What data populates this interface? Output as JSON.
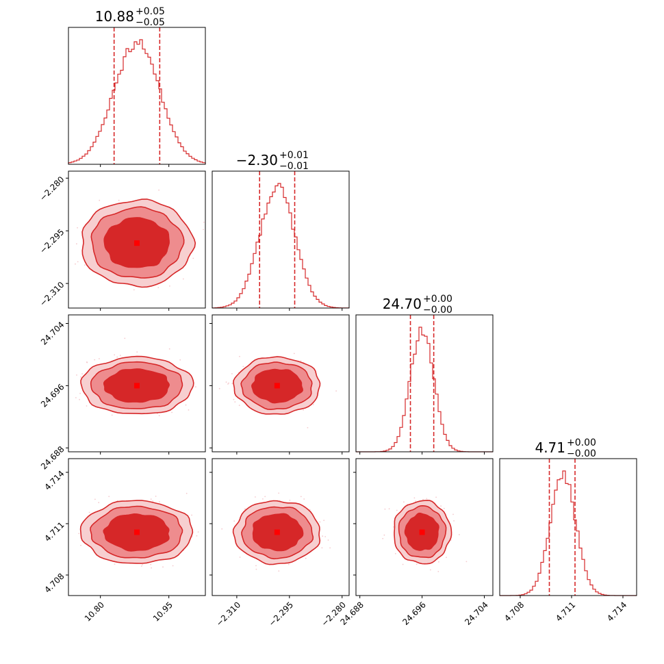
{
  "chart_data": {
    "type": "corner",
    "colors": {
      "line": "#d62728",
      "fill_inner": "#d62728",
      "fill_middle": "#ee8c8e",
      "fill_outer": "#f7cfd0",
      "scatter": "#f2b8bd"
    },
    "params": [
      {
        "title_value": "10.88",
        "err_plus": "+0.05",
        "err_minus": "−0.05",
        "median": 10.88,
        "q_lo": 10.83,
        "q_hi": 10.93,
        "range": [
          10.73,
          11.03
        ],
        "ticks": [
          10.8,
          10.95
        ],
        "tick_labels": [
          "10.80",
          "10.95"
        ]
      },
      {
        "title_value": "−2.30",
        "err_plus": "+0.01",
        "err_minus": "−0.01",
        "median": -2.2985,
        "q_lo": -2.3035,
        "q_hi": -2.2935,
        "range": [
          -2.317,
          -2.278
        ],
        "ticks": [
          -2.31,
          -2.295,
          -2.28
        ],
        "tick_labels": [
          "−2.310",
          "−2.295",
          "−2.280"
        ]
      },
      {
        "title_value": "24.70",
        "err_plus": "+0.00",
        "err_minus": "−0.00",
        "median": 24.696,
        "q_lo": 24.6945,
        "q_hi": 24.6975,
        "range": [
          24.6875,
          24.7051
        ],
        "ticks": [
          24.688,
          24.696,
          24.704
        ],
        "tick_labels": [
          "24.688",
          "24.696",
          "24.704"
        ]
      },
      {
        "title_value": "4.71",
        "err_plus": "+0.00",
        "err_minus": "−0.00",
        "median": 4.7105,
        "q_lo": 4.7097,
        "q_hi": 4.7112,
        "range": [
          4.7068,
          4.7148
        ],
        "ticks": [
          4.708,
          4.711,
          4.714
        ],
        "tick_labels": [
          "4.708",
          "4.711",
          "4.714"
        ]
      }
    ]
  }
}
